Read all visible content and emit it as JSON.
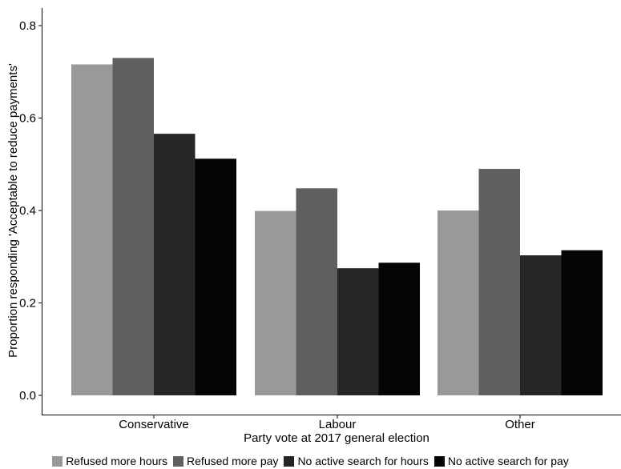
{
  "chart_data": {
    "type": "bar",
    "title": "",
    "xlabel": "Party vote at 2017 general election",
    "ylabel": "Proportion responding 'Acceptable to reduce payments'",
    "categories": [
      "Conservative",
      "Labour",
      "Other"
    ],
    "ylim": [
      0,
      0.8
    ],
    "yticks": [
      0.0,
      0.2,
      0.4,
      0.6,
      0.8
    ],
    "ytick_labels": [
      "0.0",
      "0.2",
      "0.4",
      "0.6",
      "0.8"
    ],
    "grid": false,
    "legend_position": "bottom",
    "series": [
      {
        "name": "Refused more hours",
        "color": "#999999",
        "values": [
          0.716,
          0.399,
          0.4
        ]
      },
      {
        "name": "Refused more pay",
        "color": "#5f5f5f",
        "values": [
          0.73,
          0.448,
          0.49
        ]
      },
      {
        "name": "No active search for hours",
        "color": "#262626",
        "values": [
          0.566,
          0.275,
          0.303
        ]
      },
      {
        "name": "No active search for pay",
        "color": "#050505",
        "values": [
          0.512,
          0.287,
          0.314
        ]
      }
    ]
  }
}
